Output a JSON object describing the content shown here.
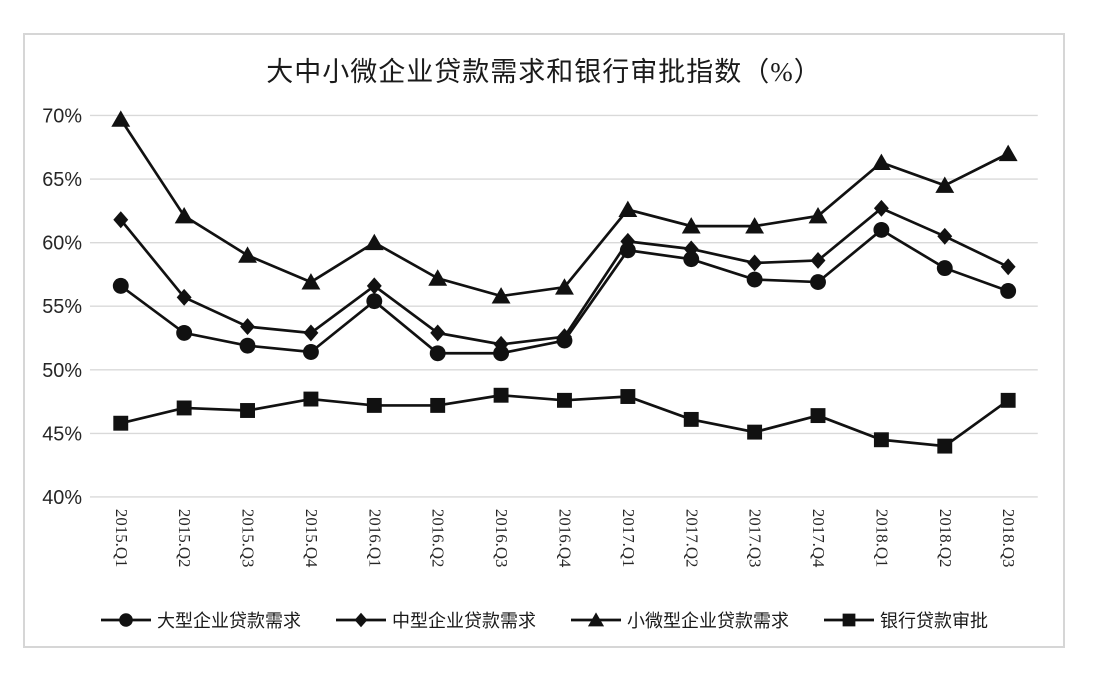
{
  "chart_data": {
    "type": "line",
    "title": "大中小微企业贷款需求和银行审批指数（%）",
    "categories": [
      "2015.Q1",
      "2015.Q2",
      "2015.Q3",
      "2015.Q4",
      "2016.Q1",
      "2016.Q2",
      "2016.Q3",
      "2016.Q4",
      "2017.Q1",
      "2017.Q2",
      "2017.Q3",
      "2017.Q4",
      "2018.Q1",
      "2018.Q2",
      "2018.Q3"
    ],
    "series": [
      {
        "name": "大型企业贷款需求",
        "marker": "circle",
        "color": "#111111",
        "values": [
          56.6,
          52.9,
          51.9,
          51.4,
          55.4,
          51.3,
          51.3,
          52.3,
          59.4,
          58.7,
          57.1,
          56.9,
          61.0,
          58.0,
          56.2
        ]
      },
      {
        "name": "中型企业贷款需求",
        "marker": "diamond",
        "color": "#111111",
        "values": [
          61.8,
          55.7,
          53.4,
          52.9,
          56.6,
          52.9,
          52.0,
          52.6,
          60.1,
          59.5,
          58.4,
          58.6,
          62.7,
          60.5,
          58.1
        ]
      },
      {
        "name": "小微型企业贷款需求",
        "marker": "triangle",
        "color": "#111111",
        "values": [
          69.7,
          62.1,
          59.0,
          56.9,
          60.0,
          57.2,
          55.8,
          56.5,
          62.6,
          61.3,
          61.3,
          62.1,
          66.3,
          64.5,
          67.0
        ]
      },
      {
        "name": "银行贷款审批",
        "marker": "square",
        "color": "#111111",
        "values": [
          45.8,
          47.0,
          46.8,
          47.7,
          47.2,
          47.2,
          48.0,
          47.6,
          47.9,
          46.1,
          45.1,
          46.4,
          44.5,
          44.0,
          47.6
        ]
      }
    ],
    "ylim": [
      40,
      70
    ],
    "yticks": [
      {
        "value": 70,
        "label": "70%"
      },
      {
        "value": 65,
        "label": "65%"
      },
      {
        "value": 60,
        "label": "60%"
      },
      {
        "value": 55,
        "label": "55%"
      },
      {
        "value": 50,
        "label": "50%"
      },
      {
        "value": 45,
        "label": "45%"
      },
      {
        "value": 40,
        "label": "40%"
      }
    ],
    "xlabel": "",
    "ylabel": "",
    "grid": "horizontal",
    "legend_position": "bottom",
    "x_tick_rotation_deg": 90
  },
  "colors": {
    "series": "#111111",
    "grid": "#d9d9d9",
    "frame_border": "#d6d6d6",
    "text": "#262626",
    "background": "#ffffff"
  }
}
